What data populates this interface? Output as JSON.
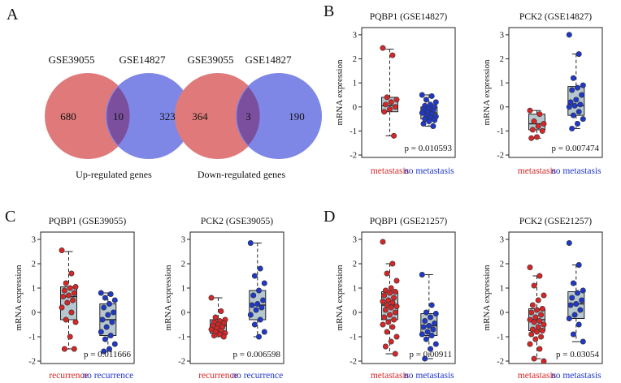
{
  "panel_letters": {
    "a": "A",
    "b": "B",
    "c": "C",
    "d": "D"
  },
  "venn": [
    {
      "left_label": "GSE39055",
      "right_label": "GSE14827",
      "left_only": "680",
      "overlap": "10",
      "right_only": "323",
      "caption": "Up-regulated genes",
      "left_color": "#e07a7a",
      "right_color": "#7f87e6",
      "overlap_color": "#7b4f9e"
    },
    {
      "left_label": "GSE39055",
      "right_label": "GSE14827",
      "left_only": "364",
      "overlap": "3",
      "right_only": "190",
      "caption": "Down-regulated genes",
      "left_color": "#e07a7a",
      "right_color": "#7f87e6",
      "overlap_color": "#7b4f9e"
    }
  ],
  "colors": {
    "group1": "#d62728",
    "group2": "#2038c8",
    "box_fill": "#b7c7cf",
    "text": "#1a1a1a"
  },
  "chart_data": [
    {
      "type": "boxplot",
      "title": "PQBP1 (GSE14827)",
      "ylabel": "mRNA expression",
      "ylim": [
        -2.1,
        3.3
      ],
      "yticks": [
        -2,
        -1,
        0,
        1,
        2,
        3
      ],
      "categories": [
        "metastasis",
        "no metastasis"
      ],
      "boxes": [
        {
          "q1": -0.2,
          "median": 0.05,
          "q3": 0.4,
          "whisker_low": -1.2,
          "whisker_high": 2.4
        },
        {
          "q1": -0.5,
          "median": -0.25,
          "q3": 0.0,
          "whisker_low": -0.8,
          "whisker_high": 0.5
        }
      ],
      "series": [
        {
          "name": "metastasis",
          "values": [
            2.45,
            2.15,
            0.4,
            0.3,
            0.2,
            0.1,
            0.0,
            -0.1,
            -0.2,
            -1.2
          ]
        },
        {
          "name": "no metastasis",
          "values": [
            0.5,
            0.45,
            0.3,
            0.2,
            0.1,
            0.05,
            0.0,
            -0.05,
            -0.1,
            -0.15,
            -0.2,
            -0.25,
            -0.3,
            -0.35,
            -0.4,
            -0.45,
            -0.5,
            -0.55,
            -0.6,
            -0.7,
            -0.8
          ]
        }
      ],
      "annotation": "p = 0.010593"
    },
    {
      "type": "boxplot",
      "title": "PCK2 (GSE14827)",
      "ylabel": "mRNA expression",
      "ylim": [
        -2.1,
        3.3
      ],
      "yticks": [
        -2,
        -1,
        0,
        1,
        2,
        3
      ],
      "categories": [
        "metastasis",
        "no metastasis"
      ],
      "boxes": [
        {
          "q1": -0.95,
          "median": -0.7,
          "q3": -0.3,
          "whisker_low": -1.3,
          "whisker_high": -0.15
        },
        {
          "q1": -0.35,
          "median": 0.05,
          "q3": 0.85,
          "whisker_low": -0.9,
          "whisker_high": 2.2
        }
      ],
      "series": [
        {
          "name": "metastasis",
          "values": [
            -0.15,
            -0.3,
            -0.6,
            -0.7,
            -0.8,
            -0.95,
            -1.0,
            -1.25,
            -1.3
          ]
        },
        {
          "name": "no metastasis",
          "values": [
            3.0,
            2.2,
            1.2,
            0.9,
            0.8,
            0.7,
            0.5,
            0.3,
            0.2,
            0.1,
            0.05,
            0.0,
            -0.2,
            -0.35,
            -0.5,
            -0.7,
            -0.9
          ]
        }
      ],
      "annotation": "p = 0.007474"
    },
    {
      "type": "boxplot",
      "title": "PQBP1 (GSE39055)",
      "ylabel": "mRNA expression",
      "ylim": [
        -2.1,
        3.3
      ],
      "yticks": [
        -2,
        -1,
        0,
        1,
        2,
        3
      ],
      "categories": [
        "recurrence",
        "no recurrence"
      ],
      "boxes": [
        {
          "q1": -0.3,
          "median": 0.65,
          "q3": 1.05,
          "whisker_low": -1.5,
          "whisker_high": 2.5
        },
        {
          "q1": -0.95,
          "median": -0.3,
          "q3": 0.35,
          "whisker_low": -1.6,
          "whisker_high": 0.8
        }
      ],
      "series": [
        {
          "name": "recurrence",
          "values": [
            2.55,
            1.6,
            1.2,
            1.05,
            1.0,
            0.9,
            0.8,
            0.7,
            0.65,
            0.5,
            0.4,
            0.2,
            0.0,
            -0.3,
            -0.4,
            -1.0,
            -1.5,
            -1.5
          ]
        },
        {
          "name": "no recurrence",
          "values": [
            0.8,
            0.75,
            0.6,
            0.5,
            0.35,
            0.2,
            0.0,
            -0.1,
            -0.3,
            -0.4,
            -0.6,
            -0.8,
            -0.95,
            -1.1,
            -1.3,
            -1.5,
            -1.6
          ]
        }
      ],
      "annotation": "p = 0.011666"
    },
    {
      "type": "boxplot",
      "title": "PCK2 (GSE39055)",
      "ylabel": "mRNA expression",
      "ylim": [
        -2.1,
        3.3
      ],
      "yticks": [
        -2,
        -1,
        0,
        1,
        2,
        3
      ],
      "categories": [
        "recurrence",
        "no recurrence"
      ],
      "boxes": [
        {
          "q1": -0.85,
          "median": -0.55,
          "q3": -0.3,
          "whisker_low": -1.0,
          "whisker_high": 0.6
        },
        {
          "q1": -0.3,
          "median": 0.3,
          "q3": 0.9,
          "whisker_low": -1.0,
          "whisker_high": 2.85
        }
      ],
      "series": [
        {
          "name": "recurrence",
          "values": [
            0.6,
            0.05,
            -0.2,
            -0.3,
            -0.35,
            -0.4,
            -0.45,
            -0.5,
            -0.55,
            -0.6,
            -0.65,
            -0.7,
            -0.75,
            -0.8,
            -0.85,
            -0.9,
            -0.95,
            -1.0
          ]
        },
        {
          "name": "no recurrence",
          "values": [
            2.85,
            1.8,
            1.5,
            1.2,
            0.9,
            0.7,
            0.5,
            0.35,
            0.3,
            0.2,
            0.1,
            -0.1,
            -0.3,
            -0.5,
            -0.8,
            -1.0
          ]
        }
      ],
      "annotation": "p = 0.006598"
    },
    {
      "type": "boxplot",
      "title": "PQBP1 (GSE21257)",
      "ylabel": "mRNA expression",
      "ylim": [
        -2.1,
        3.3
      ],
      "yticks": [
        -2,
        -1,
        0,
        1,
        2,
        3
      ],
      "categories": [
        "metastasis",
        "no metastasis"
      ],
      "boxes": [
        {
          "q1": -0.3,
          "median": 0.3,
          "q3": 0.85,
          "whisker_low": -1.7,
          "whisker_high": 2.0
        },
        {
          "q1": -0.95,
          "median": -0.55,
          "q3": -0.05,
          "whisker_low": -1.9,
          "whisker_high": 1.55
        }
      ],
      "series": [
        {
          "name": "metastasis",
          "values": [
            2.9,
            2.0,
            1.6,
            1.3,
            1.0,
            0.9,
            0.85,
            0.8,
            0.7,
            0.6,
            0.5,
            0.45,
            0.4,
            0.3,
            0.25,
            0.2,
            0.1,
            0.0,
            -0.1,
            -0.2,
            -0.3,
            -0.4,
            -0.5,
            -0.6,
            -0.8,
            -1.0,
            -1.2,
            -1.4,
            -1.7
          ]
        },
        {
          "name": "no metastasis",
          "values": [
            1.55,
            0.3,
            0.0,
            -0.05,
            -0.2,
            -0.35,
            -0.45,
            -0.55,
            -0.6,
            -0.7,
            -0.8,
            -0.9,
            -0.95,
            -1.1,
            -1.3,
            -1.5,
            -1.9
          ]
        }
      ],
      "annotation": "p = 0.00911"
    },
    {
      "type": "boxplot",
      "title": "PCK2 (GSE21257)",
      "ylabel": "mRNA expression",
      "ylim": [
        -2.1,
        3.3
      ],
      "yticks": [
        -2,
        -1,
        0,
        1,
        2,
        3
      ],
      "categories": [
        "metastasis",
        "no metastasis"
      ],
      "boxes": [
        {
          "q1": -0.75,
          "median": -0.3,
          "q3": 0.15,
          "whisker_low": -1.9,
          "whisker_high": 1.5
        },
        {
          "q1": -0.25,
          "median": 0.35,
          "q3": 0.85,
          "whisker_low": -1.2,
          "whisker_high": 1.95
        }
      ],
      "series": [
        {
          "name": "metastasis",
          "values": [
            1.85,
            1.5,
            1.1,
            0.7,
            0.5,
            0.3,
            0.15,
            0.1,
            0.0,
            -0.1,
            -0.2,
            -0.3,
            -0.35,
            -0.4,
            -0.5,
            -0.6,
            -0.7,
            -0.75,
            -0.8,
            -0.9,
            -1.0,
            -1.1,
            -1.3,
            -1.5,
            -1.9,
            -2.0
          ]
        },
        {
          "name": "no metastasis",
          "values": [
            2.85,
            1.95,
            1.2,
            0.9,
            0.8,
            0.6,
            0.5,
            0.35,
            0.3,
            0.1,
            -0.1,
            -0.25,
            -0.5,
            -0.9,
            -1.2
          ]
        }
      ],
      "annotation": "p = 0.03054"
    }
  ]
}
